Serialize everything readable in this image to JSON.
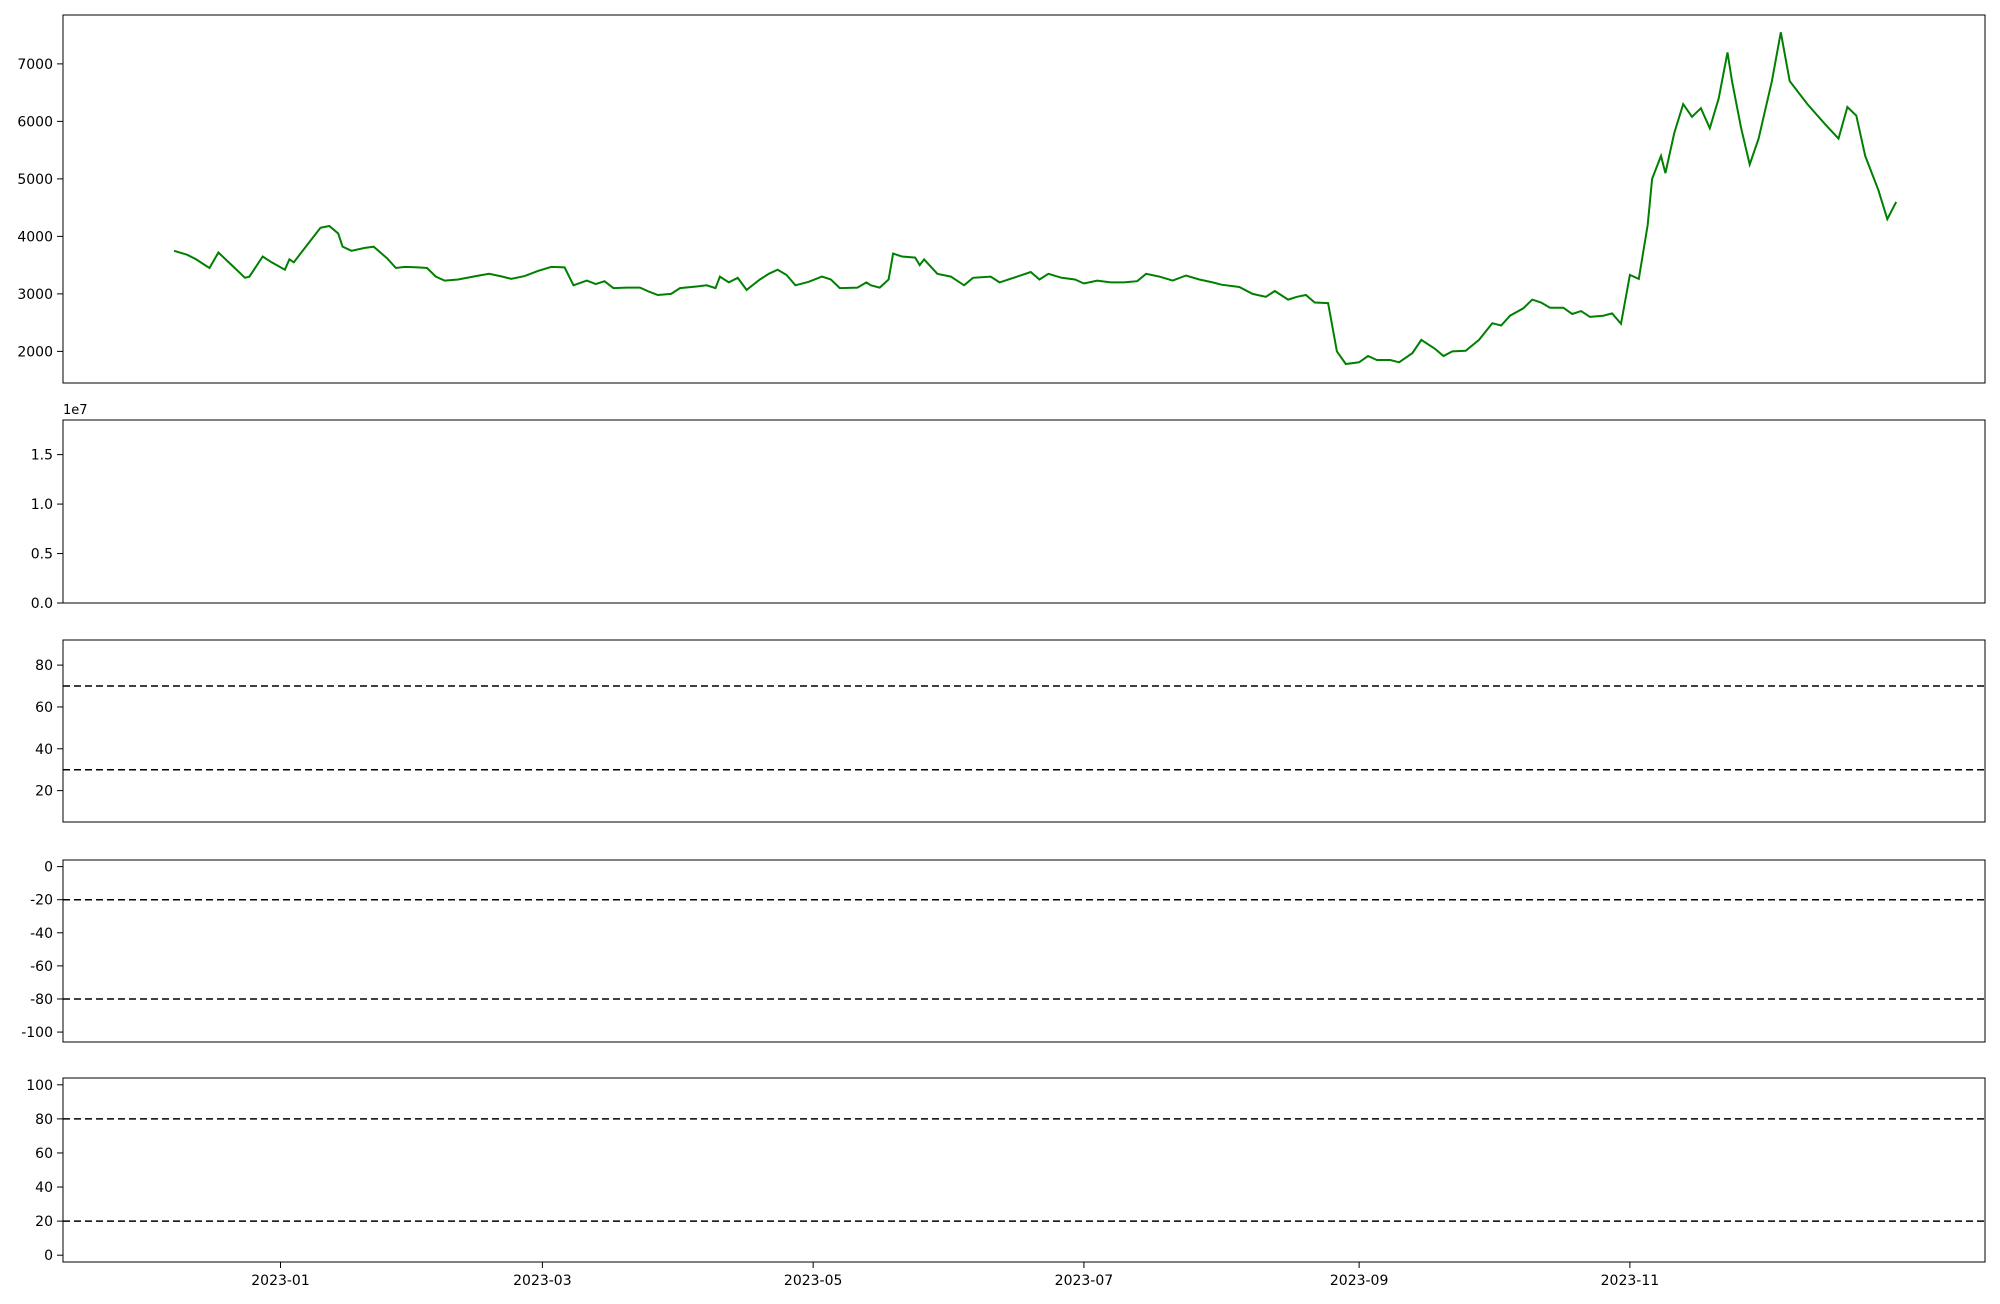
{
  "x_ticks": [
    "2023-01",
    "2023-03",
    "2023-05",
    "2023-07",
    "2023-09",
    "2023-11"
  ],
  "chart_data": [
    {
      "type": "line",
      "panel": "price",
      "title": "",
      "ylim": [
        1450,
        7850
      ],
      "yticks": [
        2000,
        3000,
        4000,
        5000,
        6000,
        7000
      ],
      "color": "#008000",
      "points": [
        [
          "2022-12-08",
          3750
        ],
        [
          "2022-12-11",
          3680
        ],
        [
          "2022-12-13",
          3600
        ],
        [
          "2022-12-15",
          3500
        ],
        [
          "2022-12-16",
          3450
        ],
        [
          "2022-12-18",
          3720
        ],
        [
          "2022-12-21",
          3500
        ],
        [
          "2022-12-24",
          3280
        ],
        [
          "2022-12-25",
          3300
        ],
        [
          "2022-12-28",
          3650
        ],
        [
          "2022-12-30",
          3550
        ],
        [
          "2023-01-02",
          3420
        ],
        [
          "2023-01-03",
          3600
        ],
        [
          "2023-01-04",
          3550
        ],
        [
          "2023-01-07",
          3850
        ],
        [
          "2023-01-10",
          4150
        ],
        [
          "2023-01-12",
          4180
        ],
        [
          "2023-01-14",
          4050
        ],
        [
          "2023-01-15",
          3820
        ],
        [
          "2023-01-17",
          3750
        ],
        [
          "2023-01-20",
          3800
        ],
        [
          "2023-01-22",
          3820
        ],
        [
          "2023-01-25",
          3620
        ],
        [
          "2023-01-27",
          3450
        ],
        [
          "2023-01-29",
          3470
        ],
        [
          "2023-02-01",
          3460
        ],
        [
          "2023-02-03",
          3450
        ],
        [
          "2023-02-05",
          3300
        ],
        [
          "2023-02-07",
          3230
        ],
        [
          "2023-02-10",
          3250
        ],
        [
          "2023-02-14",
          3310
        ],
        [
          "2023-02-17",
          3350
        ],
        [
          "2023-02-20",
          3300
        ],
        [
          "2023-02-22",
          3260
        ],
        [
          "2023-02-25",
          3310
        ],
        [
          "2023-02-28",
          3400
        ],
        [
          "2023-03-03",
          3470
        ],
        [
          "2023-03-06",
          3460
        ],
        [
          "2023-03-08",
          3150
        ],
        [
          "2023-03-11",
          3230
        ],
        [
          "2023-03-13",
          3170
        ],
        [
          "2023-03-15",
          3220
        ],
        [
          "2023-03-17",
          3100
        ],
        [
          "2023-03-20",
          3110
        ],
        [
          "2023-03-23",
          3110
        ],
        [
          "2023-03-25",
          3040
        ],
        [
          "2023-03-27",
          2980
        ],
        [
          "2023-03-30",
          3000
        ],
        [
          "2023-04-01",
          3100
        ],
        [
          "2023-04-05",
          3130
        ],
        [
          "2023-04-07",
          3150
        ],
        [
          "2023-04-09",
          3100
        ],
        [
          "2023-04-10",
          3300
        ],
        [
          "2023-04-12",
          3200
        ],
        [
          "2023-04-14",
          3280
        ],
        [
          "2023-04-16",
          3070
        ],
        [
          "2023-04-19",
          3250
        ],
        [
          "2023-04-21",
          3350
        ],
        [
          "2023-04-23",
          3420
        ],
        [
          "2023-04-25",
          3330
        ],
        [
          "2023-04-27",
          3150
        ],
        [
          "2023-04-30",
          3210
        ],
        [
          "2023-05-03",
          3300
        ],
        [
          "2023-05-05",
          3250
        ],
        [
          "2023-05-07",
          3100
        ],
        [
          "2023-05-11",
          3110
        ],
        [
          "2023-05-13",
          3200
        ],
        [
          "2023-05-14",
          3150
        ],
        [
          "2023-05-16",
          3110
        ],
        [
          "2023-05-18",
          3250
        ],
        [
          "2023-05-19",
          3700
        ],
        [
          "2023-05-21",
          3650
        ],
        [
          "2023-05-24",
          3630
        ],
        [
          "2023-05-25",
          3500
        ],
        [
          "2023-05-26",
          3600
        ],
        [
          "2023-05-29",
          3350
        ],
        [
          "2023-06-01",
          3300
        ],
        [
          "2023-06-04",
          3150
        ],
        [
          "2023-06-06",
          3280
        ],
        [
          "2023-06-10",
          3300
        ],
        [
          "2023-06-12",
          3200
        ],
        [
          "2023-06-16",
          3300
        ],
        [
          "2023-06-19",
          3380
        ],
        [
          "2023-06-21",
          3250
        ],
        [
          "2023-06-23",
          3350
        ],
        [
          "2023-06-26",
          3280
        ],
        [
          "2023-06-29",
          3250
        ],
        [
          "2023-07-01",
          3180
        ],
        [
          "2023-07-04",
          3230
        ],
        [
          "2023-07-07",
          3200
        ],
        [
          "2023-07-10",
          3200
        ],
        [
          "2023-07-13",
          3220
        ],
        [
          "2023-07-15",
          3350
        ],
        [
          "2023-07-18",
          3300
        ],
        [
          "2023-07-21",
          3230
        ],
        [
          "2023-07-24",
          3320
        ],
        [
          "2023-07-27",
          3250
        ],
        [
          "2023-07-30",
          3200
        ],
        [
          "2023-08-01",
          3160
        ],
        [
          "2023-08-05",
          3120
        ],
        [
          "2023-08-08",
          3000
        ],
        [
          "2023-08-11",
          2950
        ],
        [
          "2023-08-13",
          3050
        ],
        [
          "2023-08-16",
          2900
        ],
        [
          "2023-08-18",
          2950
        ],
        [
          "2023-08-20",
          2980
        ],
        [
          "2023-08-22",
          2850
        ],
        [
          "2023-08-25",
          2840
        ],
        [
          "2023-08-27",
          2000
        ],
        [
          "2023-08-29",
          1780
        ],
        [
          "2023-09-01",
          1810
        ],
        [
          "2023-09-03",
          1920
        ],
        [
          "2023-09-05",
          1850
        ],
        [
          "2023-09-08",
          1850
        ],
        [
          "2023-09-10",
          1810
        ],
        [
          "2023-09-13",
          1970
        ],
        [
          "2023-09-15",
          2200
        ],
        [
          "2023-09-18",
          2050
        ],
        [
          "2023-09-20",
          1920
        ],
        [
          "2023-09-22",
          2000
        ],
        [
          "2023-09-25",
          2010
        ],
        [
          "2023-09-28",
          2200
        ],
        [
          "2023-10-01",
          2490
        ],
        [
          "2023-10-03",
          2450
        ],
        [
          "2023-10-05",
          2620
        ],
        [
          "2023-10-08",
          2750
        ],
        [
          "2023-10-10",
          2900
        ],
        [
          "2023-10-12",
          2850
        ],
        [
          "2023-10-14",
          2760
        ],
        [
          "2023-10-17",
          2760
        ],
        [
          "2023-10-19",
          2650
        ],
        [
          "2023-10-21",
          2700
        ],
        [
          "2023-10-23",
          2600
        ],
        [
          "2023-10-26",
          2620
        ],
        [
          "2023-10-28",
          2660
        ],
        [
          "2023-10-30",
          2480
        ],
        [
          "2023-11-01",
          3330
        ],
        [
          "2023-11-03",
          3260
        ],
        [
          "2023-11-05",
          4200
        ],
        [
          "2023-11-06",
          5000
        ],
        [
          "2023-11-08",
          5400
        ],
        [
          "2023-11-09",
          5100
        ],
        [
          "2023-11-11",
          5800
        ],
        [
          "2023-11-13",
          6300
        ],
        [
          "2023-11-15",
          6080
        ],
        [
          "2023-11-17",
          6230
        ],
        [
          "2023-11-19",
          5880
        ],
        [
          "2023-11-21",
          6400
        ],
        [
          "2023-11-23",
          7200
        ],
        [
          "2023-11-24",
          6700
        ],
        [
          "2023-11-26",
          5900
        ],
        [
          "2023-11-28",
          5250
        ],
        [
          "2023-11-30",
          5700
        ],
        [
          "2023-12-03",
          6700
        ],
        [
          "2023-12-05",
          7550
        ],
        [
          "2023-12-07",
          6700
        ],
        [
          "2023-12-11",
          6300
        ],
        [
          "2023-12-15",
          5950
        ],
        [
          "2023-12-18",
          5700
        ],
        [
          "2023-12-20",
          6250
        ],
        [
          "2023-12-22",
          6100
        ],
        [
          "2023-12-24",
          5400
        ],
        [
          "2023-12-27",
          4800
        ],
        [
          "2023-12-29",
          4300
        ],
        [
          "2023-12-31",
          4600
        ]
      ]
    }
  ]
}
